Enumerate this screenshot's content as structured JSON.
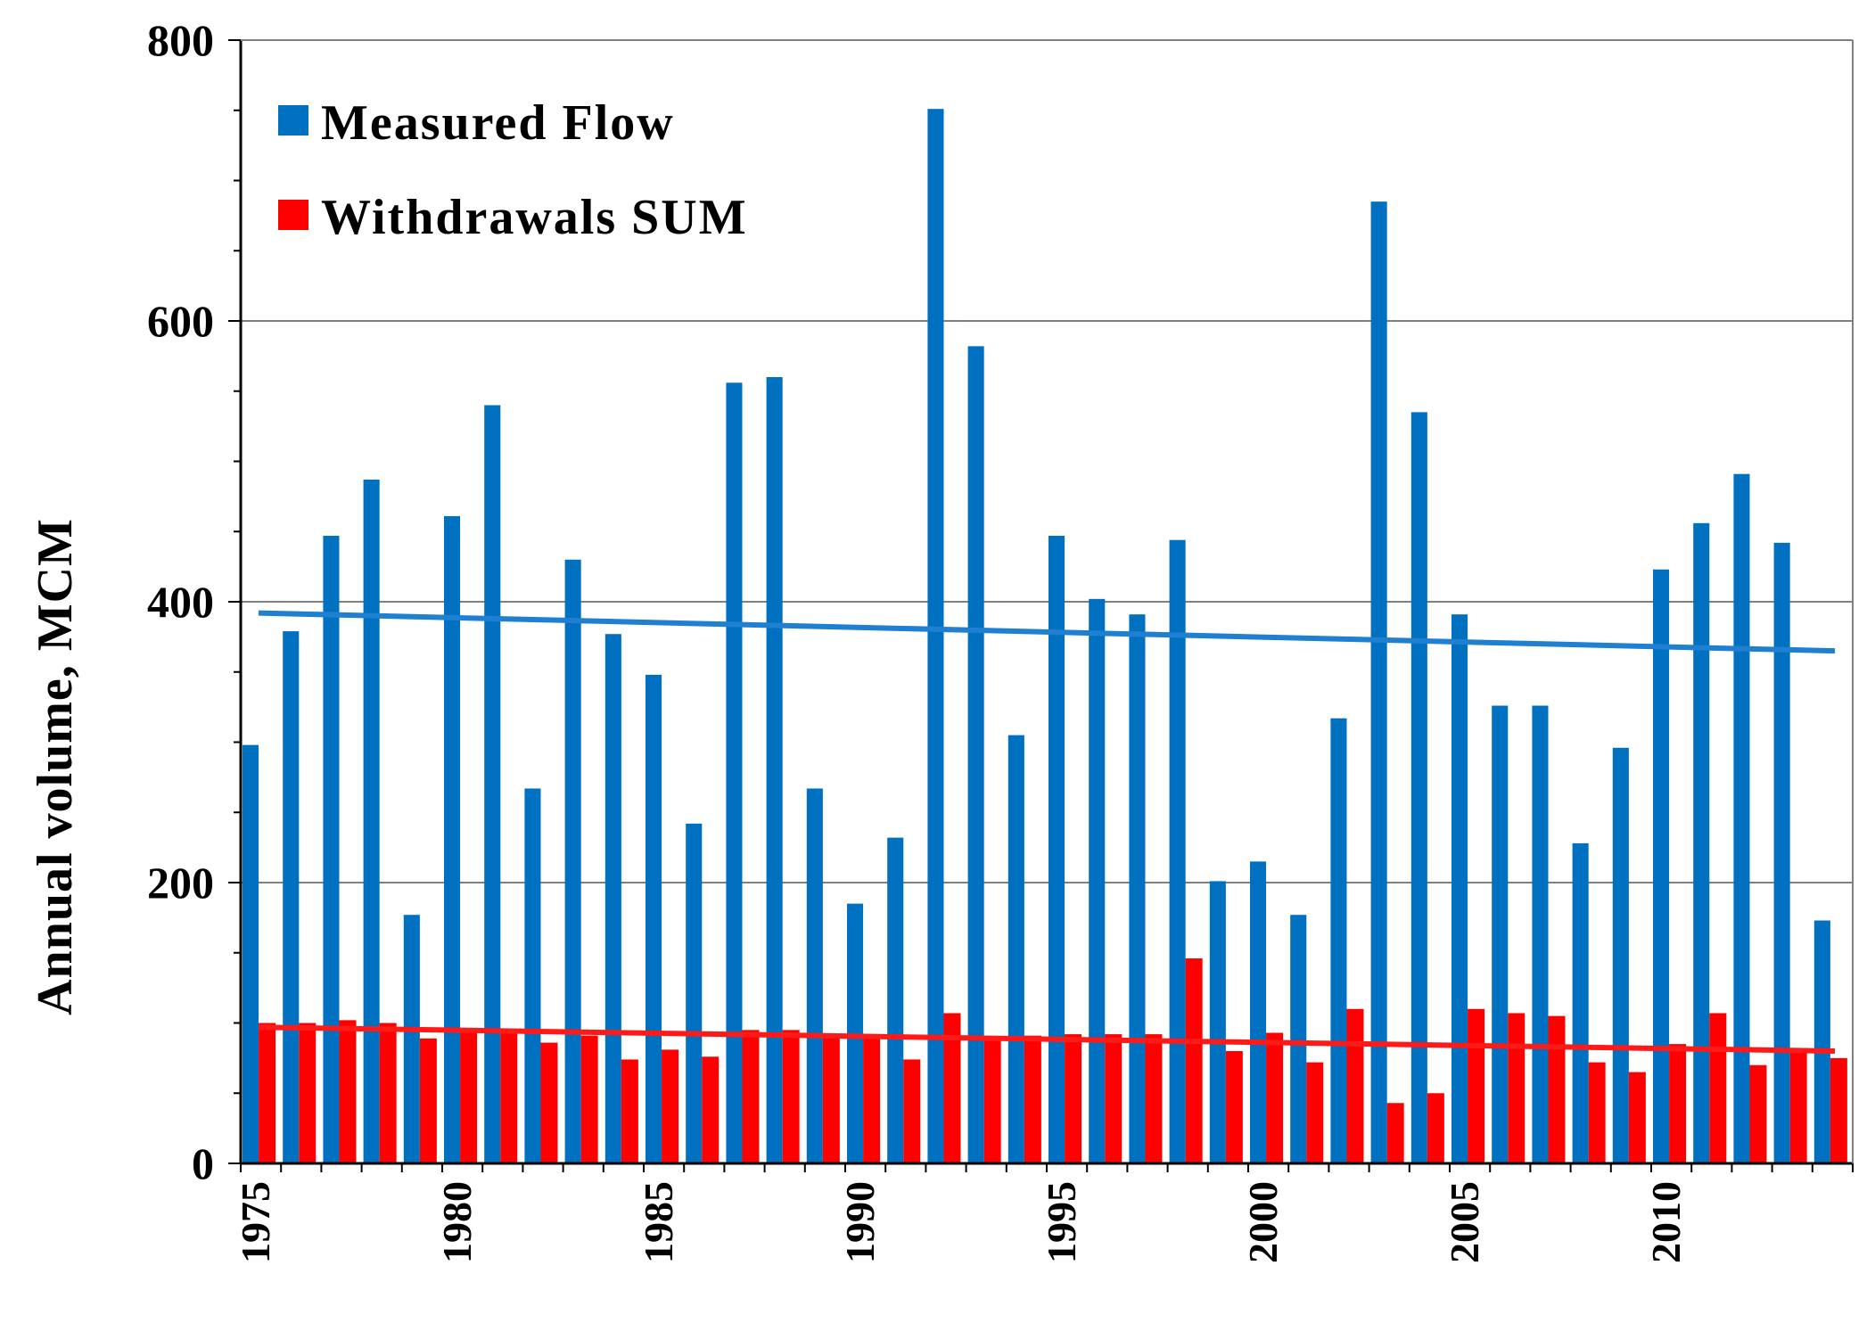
{
  "colors": {
    "flow": "#0070C0",
    "withdrawals": "#FF0000",
    "flow_trend": "#1F7FD0",
    "withdrawals_trend": "#FF1A1A",
    "grid": "#808080",
    "axis": "#000000"
  },
  "chart_data": {
    "type": "bar",
    "title": "",
    "xlabel": "",
    "ylabel": "Annual  volume, MCM",
    "ylim": [
      0,
      800
    ],
    "y_ticks": [
      0,
      200,
      400,
      600,
      800
    ],
    "y_tick_labels": [
      "0",
      "200",
      "400",
      "600",
      "800"
    ],
    "x_tick_labels": [
      "1975",
      "1980",
      "1985",
      "1990",
      "1995",
      "2000",
      "2005",
      "2010"
    ],
    "grid": "horizontal major lines",
    "legend_position": "top-left",
    "categories": [
      1975,
      1976,
      1977,
      1978,
      1979,
      1980,
      1981,
      1982,
      1983,
      1984,
      1985,
      1986,
      1987,
      1988,
      1989,
      1990,
      1991,
      1992,
      1993,
      1994,
      1995,
      1996,
      1997,
      1998,
      1999,
      2000,
      2001,
      2002,
      2003,
      2004,
      2005,
      2006,
      2007,
      2008,
      2009,
      2010,
      2011,
      2012,
      2013,
      2014
    ],
    "series": [
      {
        "name": "Measured Flow",
        "values": [
          298,
          379,
          447,
          487,
          177,
          461,
          540,
          267,
          430,
          377,
          348,
          242,
          556,
          560,
          267,
          185,
          232,
          751,
          582,
          305,
          447,
          402,
          391,
          444,
          201,
          215,
          177,
          317,
          685,
          535,
          391,
          326,
          326,
          228,
          296,
          423,
          456,
          491,
          442,
          173
        ],
        "trend": {
          "start": 392,
          "end": 365
        }
      },
      {
        "name": "Withdrawals SUM",
        "values": [
          100,
          100,
          102,
          100,
          89,
          94,
          94,
          86,
          91,
          74,
          81,
          76,
          95,
          95,
          91,
          89,
          74,
          107,
          90,
          91,
          92,
          92,
          92,
          146,
          80,
          93,
          72,
          110,
          43,
          50,
          110,
          107,
          105,
          72,
          65,
          85,
          107,
          70,
          82,
          75
        ],
        "trend": {
          "start": 97,
          "end": 80
        }
      }
    ]
  }
}
